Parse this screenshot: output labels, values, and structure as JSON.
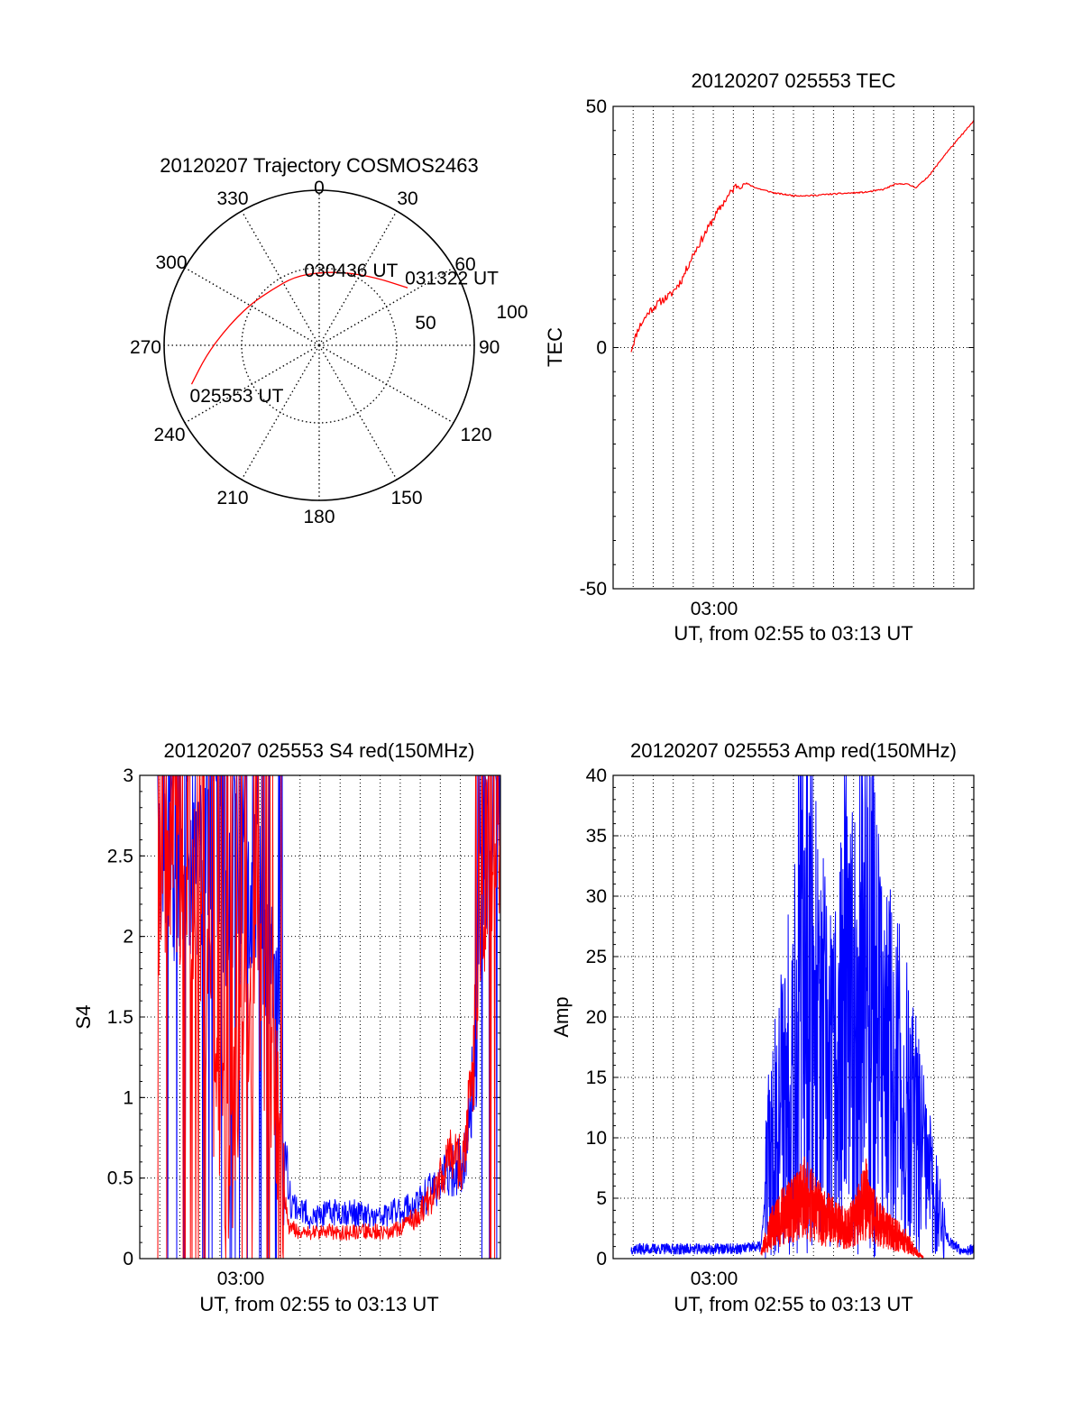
{
  "colors": {
    "red": "#ff0000",
    "blue": "#0000ff",
    "axis": "#000000"
  },
  "chart_data": [
    {
      "type": "polar",
      "title": "20120207 Trajectory COSMOS2463",
      "azimuth_labels": [
        "0",
        "30",
        "60",
        "90",
        "120",
        "150",
        "180",
        "210",
        "240",
        "270",
        "300",
        "330"
      ],
      "azimuth_values": [
        0,
        30,
        60,
        90,
        120,
        150,
        180,
        210,
        240,
        270,
        300,
        330
      ],
      "radial_max": 100,
      "radial_rings": [
        50,
        100
      ],
      "radial_labels": [
        "50",
        "100"
      ],
      "grid": true,
      "trajectory": {
        "points": [
          [
            253,
            86
          ],
          [
            265,
            73
          ],
          [
            280,
            61
          ],
          [
            300,
            52
          ],
          [
            320,
            47
          ],
          [
            340,
            47
          ],
          [
            0,
            47
          ],
          [
            20,
            50
          ],
          [
            40,
            57
          ],
          [
            57,
            68
          ]
        ]
      },
      "annotations": [
        {
          "text": "031322 UT",
          "az": 57,
          "r": 68
        },
        {
          "text": "030436 UT",
          "az": 20,
          "r": 50
        },
        {
          "text": "025553 UT",
          "az": 253,
          "r": 86
        }
      ]
    },
    {
      "type": "line",
      "title": "20120207 025553 TEC",
      "ylabel": "TEC",
      "xlabel": "UT, from 02:55 to 03:13 UT",
      "x_tick_labels": [
        "03:00"
      ],
      "y_tick_labels": [
        "-50",
        "0",
        "50"
      ],
      "ylim": [
        -50,
        50
      ],
      "grid": true,
      "series": [
        {
          "color": "red",
          "points": [
            [
              0.05,
              -0.5
            ],
            [
              0.07,
              4
            ],
            [
              0.1,
              7.5
            ],
            [
              0.13,
              9.5
            ],
            [
              0.16,
              11
            ],
            [
              0.19,
              14
            ],
            [
              0.22,
              19
            ],
            [
              0.25,
              23
            ],
            [
              0.28,
              27
            ],
            [
              0.31,
              30.5
            ],
            [
              0.34,
              33.5
            ],
            [
              0.37,
              34
            ],
            [
              0.4,
              33
            ],
            [
              0.45,
              32
            ],
            [
              0.5,
              31.5
            ],
            [
              0.55,
              31.5
            ],
            [
              0.6,
              31.8
            ],
            [
              0.65,
              32
            ],
            [
              0.7,
              32.2
            ],
            [
              0.75,
              32.8
            ],
            [
              0.78,
              33.8
            ],
            [
              0.81,
              34
            ],
            [
              0.84,
              33.2
            ],
            [
              0.86,
              34.5
            ],
            [
              0.88,
              36
            ],
            [
              0.92,
              40
            ],
            [
              0.96,
              43.5
            ],
            [
              1.0,
              47
            ]
          ]
        }
      ]
    },
    {
      "type": "line",
      "title": "20120207 025553 S4 red(150MHz)",
      "ylabel": "S4",
      "xlabel": "UT, from 02:55 to 03:13 UT",
      "x_tick_labels": [
        "03:00"
      ],
      "y_tick_labels": [
        "0",
        "0.5",
        "1",
        "1.5",
        "2",
        "2.5",
        "3"
      ],
      "ylim": [
        0,
        3
      ],
      "grid": true,
      "series": [
        {
          "color": "blue",
          "points": [
            [
              0.05,
              2.6
            ],
            [
              0.08,
              2.3
            ],
            [
              0.12,
              2.5
            ],
            [
              0.16,
              2.4
            ],
            [
              0.2,
              2.7
            ],
            [
              0.24,
              2.2
            ],
            [
              0.28,
              2.5
            ],
            [
              0.32,
              2.3
            ],
            [
              0.36,
              2.0
            ],
            [
              0.38,
              1.6
            ],
            [
              0.4,
              0.7
            ],
            [
              0.42,
              0.35
            ],
            [
              0.48,
              0.25
            ],
            [
              0.55,
              0.3
            ],
            [
              0.6,
              0.28
            ],
            [
              0.66,
              0.25
            ],
            [
              0.72,
              0.3
            ],
            [
              0.78,
              0.35
            ],
            [
              0.84,
              0.5
            ],
            [
              0.9,
              0.6
            ],
            [
              0.93,
              1.2
            ],
            [
              0.95,
              2.5
            ],
            [
              0.98,
              2.8
            ],
            [
              1.0,
              2.6
            ]
          ]
        },
        {
          "color": "red",
          "points": [
            [
              0.05,
              2.2
            ],
            [
              0.08,
              2.5
            ],
            [
              0.12,
              2.0
            ],
            [
              0.16,
              2.3
            ],
            [
              0.19,
              1.5
            ],
            [
              0.21,
              1.0
            ],
            [
              0.23,
              0.8
            ],
            [
              0.25,
              0.6
            ],
            [
              0.27,
              1.1
            ],
            [
              0.29,
              1.6
            ],
            [
              0.31,
              1.3
            ],
            [
              0.33,
              1.7
            ],
            [
              0.35,
              1.4
            ],
            [
              0.37,
              1.2
            ],
            [
              0.39,
              0.7
            ],
            [
              0.41,
              0.2
            ],
            [
              0.45,
              0.15
            ],
            [
              0.52,
              0.17
            ],
            [
              0.58,
              0.16
            ],
            [
              0.64,
              0.17
            ],
            [
              0.7,
              0.16
            ],
            [
              0.76,
              0.25
            ],
            [
              0.82,
              0.4
            ],
            [
              0.86,
              0.65
            ],
            [
              0.9,
              0.6
            ],
            [
              0.93,
              1.4
            ],
            [
              0.96,
              2.5
            ],
            [
              1.0,
              2.7
            ]
          ]
        }
      ]
    },
    {
      "type": "line",
      "title": "20120207 025553 Amp red(150MHz)",
      "ylabel": "Amp",
      "xlabel": "UT, from 02:55 to 03:13 UT",
      "x_tick_labels": [
        "03:00"
      ],
      "y_tick_labels": [
        "0",
        "5",
        "10",
        "15",
        "20",
        "25",
        "30",
        "35",
        "40"
      ],
      "ylim": [
        0,
        40
      ],
      "grid": true,
      "series": [
        {
          "color": "blue",
          "points": [
            [
              0.05,
              0.8
            ],
            [
              0.15,
              0.8
            ],
            [
              0.25,
              0.8
            ],
            [
              0.35,
              0.8
            ],
            [
              0.41,
              1.0
            ],
            [
              0.43,
              8
            ],
            [
              0.46,
              12
            ],
            [
              0.49,
              16
            ],
            [
              0.52,
              22
            ],
            [
              0.54,
              28
            ],
            [
              0.56,
              20
            ],
            [
              0.58,
              17
            ],
            [
              0.6,
              14
            ],
            [
              0.62,
              16
            ],
            [
              0.64,
              22
            ],
            [
              0.66,
              18
            ],
            [
              0.68,
              22
            ],
            [
              0.7,
              28
            ],
            [
              0.72,
              22
            ],
            [
              0.75,
              16
            ],
            [
              0.78,
              15
            ],
            [
              0.82,
              12
            ],
            [
              0.86,
              8
            ],
            [
              0.9,
              4
            ],
            [
              0.93,
              1.5
            ],
            [
              0.96,
              0.8
            ],
            [
              1.0,
              0.7
            ]
          ]
        },
        {
          "color": "red",
          "points": [
            [
              0.41,
              0.5
            ],
            [
              0.44,
              2.5
            ],
            [
              0.47,
              3.5
            ],
            [
              0.5,
              4
            ],
            [
              0.53,
              5
            ],
            [
              0.55,
              4.5
            ],
            [
              0.58,
              3.5
            ],
            [
              0.61,
              3
            ],
            [
              0.64,
              2.5
            ],
            [
              0.67,
              3
            ],
            [
              0.7,
              5
            ],
            [
              0.72,
              3.5
            ],
            [
              0.75,
              2.5
            ],
            [
              0.78,
              2
            ],
            [
              0.81,
              1.5
            ],
            [
              0.84,
              0.5
            ],
            [
              0.86,
              0.1
            ]
          ]
        }
      ]
    }
  ]
}
